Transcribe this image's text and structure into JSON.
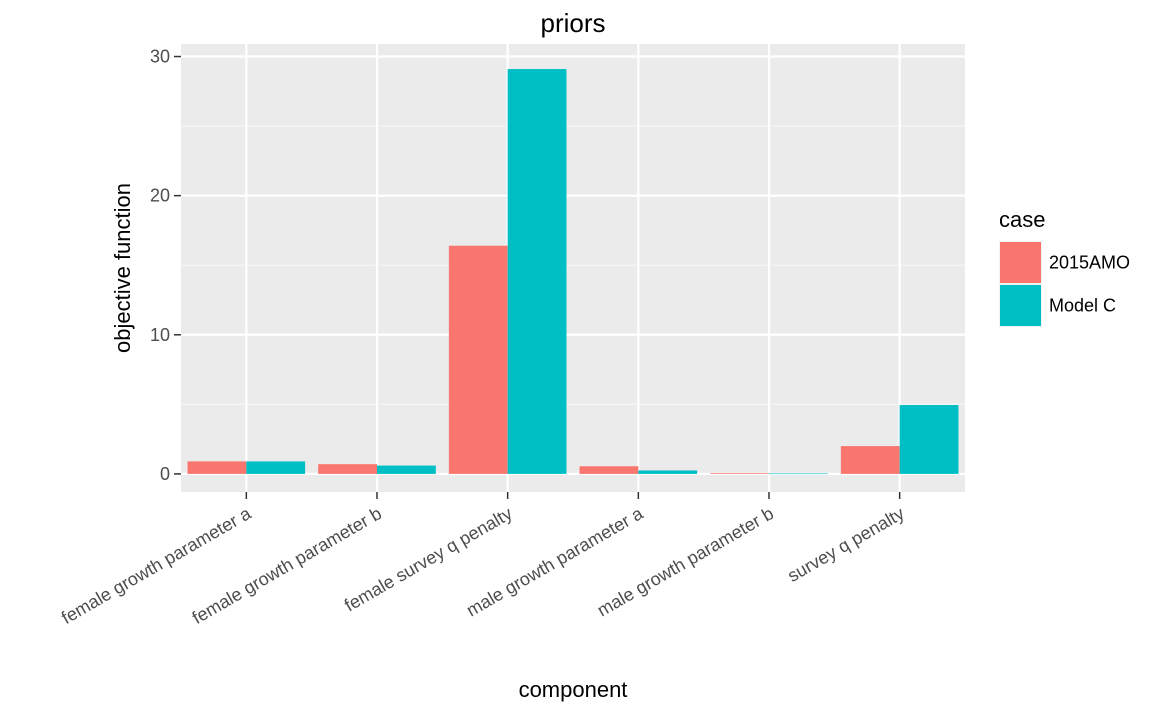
{
  "chart_data": {
    "type": "bar",
    "title": "priors",
    "xlabel": "component",
    "ylabel": "objective function",
    "categories": [
      "female growth parameter a",
      "female growth parameter b",
      "female survey q penalty",
      "male growth parameter a",
      "male growth parameter b",
      "survey q penalty"
    ],
    "series": [
      {
        "name": "2015AMO",
        "color": "#F8766D",
        "values": [
          0.9,
          0.7,
          16.4,
          0.55,
          0.05,
          2.0
        ]
      },
      {
        "name": "Model C",
        "color": "#00BFC4",
        "values": [
          0.9,
          0.6,
          29.1,
          0.25,
          0.03,
          4.95
        ]
      }
    ],
    "yticks": [
      0,
      10,
      20,
      30
    ],
    "ylim": [
      -1.3,
      30.9
    ],
    "grid": true,
    "legend": {
      "title": "case",
      "position": "right"
    }
  }
}
